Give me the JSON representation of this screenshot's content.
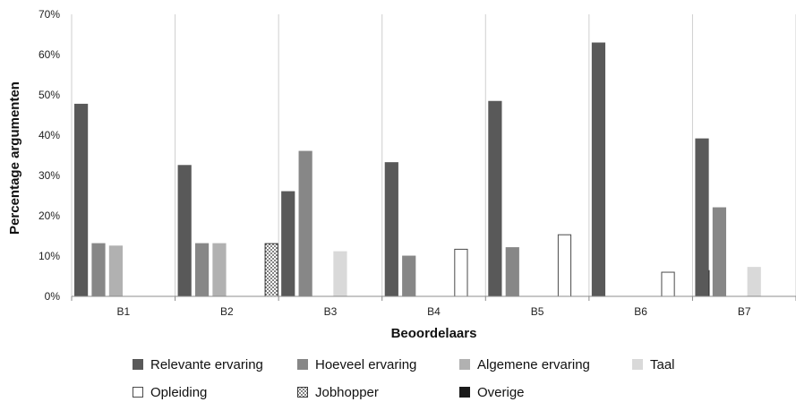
{
  "chart_data": {
    "type": "bar",
    "xlabel": "Beoordelaars",
    "ylabel": "Percentage argumenten",
    "ylim": [
      0,
      70
    ],
    "y_ticks": [
      0,
      10,
      20,
      30,
      40,
      50,
      60,
      70
    ],
    "y_tick_labels": [
      "0%",
      "10%",
      "20%",
      "30%",
      "40%",
      "50%",
      "60%",
      "70%"
    ],
    "grid": "vertical category separators",
    "legend_position": "bottom",
    "categories": [
      "B1",
      "B2",
      "B3",
      "B4",
      "B5",
      "B6",
      "B7"
    ],
    "series": [
      {
        "name": "Relevante ervaring",
        "fill": "#595959",
        "stroke": "none",
        "pattern": "solid",
        "values": [
          47.8,
          32.6,
          26.1,
          33.3,
          48.5,
          63.0,
          39.2
        ]
      },
      {
        "name": "Hoeveel ervaring",
        "fill": "#878787",
        "stroke": "none",
        "pattern": "solid",
        "values": [
          13.2,
          13.2,
          36.1,
          10.1,
          12.2,
          0,
          22.1
        ]
      },
      {
        "name": "Algemene ervaring",
        "fill": "#b1b1b1",
        "stroke": "none",
        "pattern": "solid",
        "values": [
          12.6,
          13.2,
          0,
          0,
          0,
          0,
          0
        ]
      },
      {
        "name": "Taal",
        "fill": "#d9d9d9",
        "stroke": "none",
        "pattern": "solid",
        "values": [
          0,
          0,
          11.2,
          0,
          0,
          0,
          7.3
        ]
      },
      {
        "name": "Opleiding",
        "fill": "#ffffff",
        "stroke": "#4a4a4a",
        "pattern": "outline",
        "values": [
          0,
          0,
          0,
          11.8,
          15.4,
          6.1,
          0
        ]
      },
      {
        "name": "Jobhopper",
        "fill": "#ffffff",
        "stroke": "#3a3a3a",
        "pattern": "dotted",
        "values": [
          0,
          13.2,
          0,
          0,
          0,
          0,
          0
        ]
      },
      {
        "name": "Overige",
        "fill": "#1a1a1a",
        "stroke": "none",
        "pattern": "solid",
        "values": [
          0,
          0,
          0,
          0,
          0,
          6.5,
          0
        ]
      }
    ]
  }
}
